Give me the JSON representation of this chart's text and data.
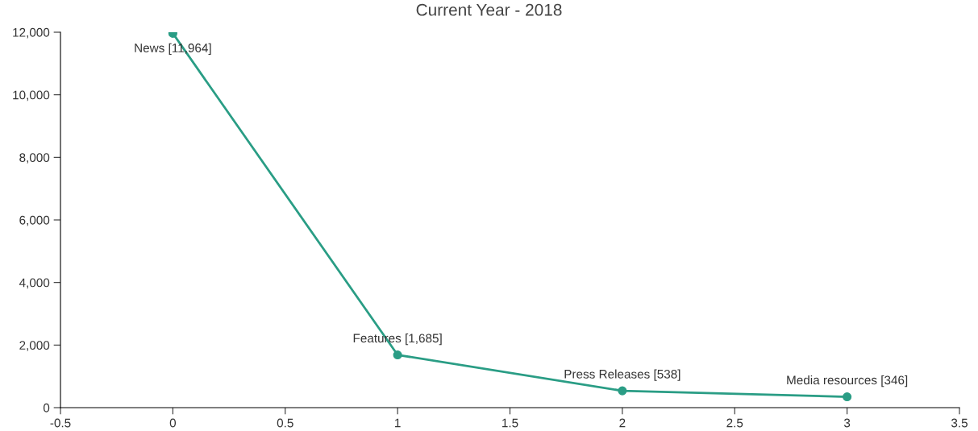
{
  "chart_data": {
    "type": "line",
    "title": "Current Year - 2018",
    "x": [
      0,
      1,
      2,
      3
    ],
    "series": [
      {
        "color": "#2a9d85",
        "values": [
          11964,
          1685,
          538,
          346
        ]
      }
    ],
    "xlim": [
      -0.5,
      3.5
    ],
    "xticks": [
      -0.5,
      0,
      0.5,
      1,
      1.5,
      2,
      2.5,
      3,
      3.5
    ],
    "ylim": [
      0,
      12000
    ],
    "yticks": [
      {
        "value": 0,
        "label": "0"
      },
      {
        "value": 2000,
        "label": "2,000"
      },
      {
        "value": 4000,
        "label": "4,000"
      },
      {
        "value": 6000,
        "label": "6,000"
      },
      {
        "value": 8000,
        "label": "8,000"
      },
      {
        "value": 10000,
        "label": "10,000"
      },
      {
        "value": 12000,
        "label": "12,000"
      }
    ],
    "marker": "circle",
    "line_style": "solid",
    "grid": false,
    "legend": false,
    "annotations": [
      {
        "text": "News [11,964]",
        "x": 0,
        "y": 11964
      },
      {
        "text": "Features [1,685]",
        "x": 1,
        "y": 1685
      },
      {
        "text": "Press Releases [538]",
        "x": 2,
        "y": 538
      },
      {
        "text": "Media resources [346]",
        "x": 3,
        "y": 346
      }
    ]
  }
}
